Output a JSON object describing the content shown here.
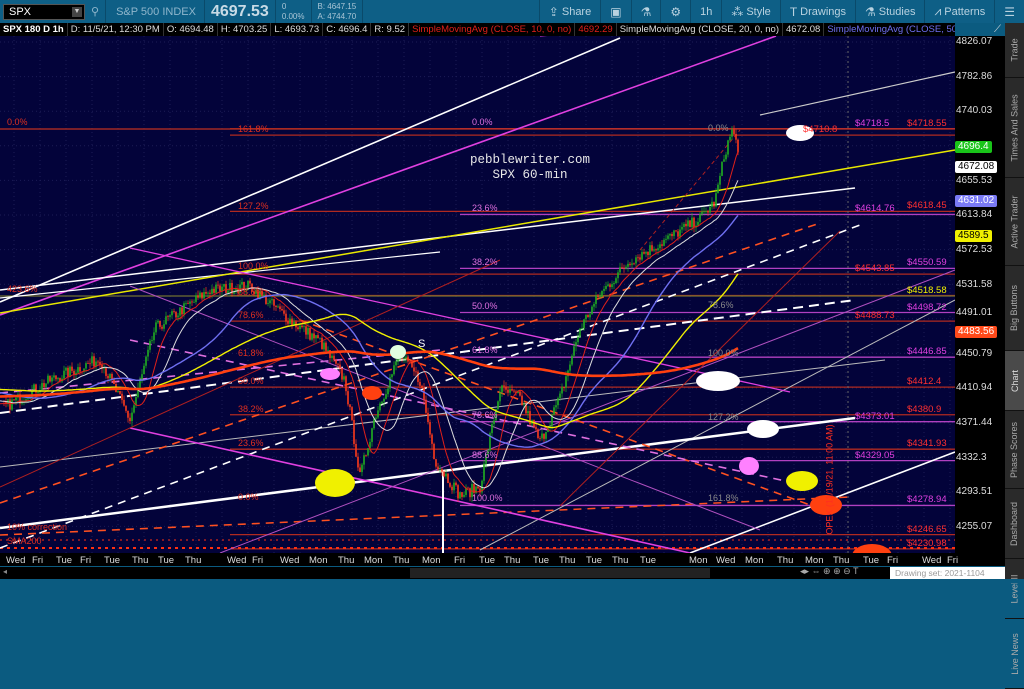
{
  "topbar": {
    "symbol": "SPX",
    "index_name": "S&P 500 INDEX",
    "last": "4697.53",
    "change": "0",
    "change_pct": "0.00%",
    "bid": "B: 4647.15",
    "ask": "A: 4744.70",
    "buttons": [
      {
        "label": "Share",
        "icon": "share-icon"
      },
      {
        "label": "",
        "icon": "flexible-grid-icon"
      },
      {
        "label": "",
        "icon": "flask-icon"
      },
      {
        "label": "",
        "icon": "gear-icon"
      },
      {
        "label": "1h",
        "icon": ""
      },
      {
        "label": "Style",
        "icon": "style-icon"
      },
      {
        "label": "Drawings",
        "icon": "text-t-icon"
      },
      {
        "label": "Studies",
        "icon": "flask-icon"
      },
      {
        "label": "Patterns",
        "icon": "patterns-icon"
      },
      {
        "label": "",
        "icon": "menu-icon"
      }
    ]
  },
  "legend": [
    {
      "text": "SPX 180 D 1h",
      "color": "#ffffff"
    },
    {
      "text": "D: 11/5/21, 12:30 PM",
      "color": "#dddddd"
    },
    {
      "text": "O: 4694.48",
      "color": "#dddddd"
    },
    {
      "text": "H: 4703.25",
      "color": "#dddddd"
    },
    {
      "text": "L: 4693.73",
      "color": "#dddddd"
    },
    {
      "text": "C: 4696.4",
      "color": "#dddddd"
    },
    {
      "text": "R: 9.52",
      "color": "#dddddd"
    },
    {
      "text": "SimpleMovingAvg (CLOSE, 10, 0, no)",
      "color": "#e0201a"
    },
    {
      "text": "4692.29",
      "color": "#e0201a"
    },
    {
      "text": "SimpleMovingAvg (CLOSE, 20, 0, no)",
      "color": "#dddddd"
    },
    {
      "text": "4672.08",
      "color": "#dddddd"
    },
    {
      "text": "SimpleMovingAvg (CLOSE, 50, 0, no)",
      "color": "#6f6ff0"
    },
    {
      "text": "...",
      "color": "#dddddd"
    }
  ],
  "axis": {
    "scale": "log",
    "ticks": [
      "4826.07",
      "4782.86",
      "4740.03",
      "4655.53",
      "4613.84",
      "4572.53",
      "4531.58",
      "4491.01",
      "4450.79",
      "4410.94",
      "4371.44",
      "4332.3",
      "4293.51",
      "4255.07"
    ]
  },
  "price_markers": [
    {
      "value": "4696.4",
      "bg": "#19c419",
      "fg": "#ffffff"
    },
    {
      "value": "4672.08",
      "bg": "#ffffff",
      "fg": "#000000"
    },
    {
      "value": "4631.02",
      "bg": "#7a7af5",
      "fg": "#ffffff"
    },
    {
      "value": "4589.5",
      "bg": "#f0f000",
      "fg": "#000000"
    },
    {
      "value": "4483.56",
      "bg": "#ff4a1a",
      "fg": "#ffffff"
    }
  ],
  "level_labels": [
    {
      "text": "$4718.5",
      "color": "#e040e0"
    },
    {
      "text": "$4718.55",
      "color": "#ff3030"
    },
    {
      "text": "$4710.8",
      "color": "#ff3030"
    },
    {
      "text": "$4618.45",
      "color": "#ff3030"
    },
    {
      "text": "$4614.76",
      "color": "#e040e0"
    },
    {
      "text": "$4550.59",
      "color": "#e040e0"
    },
    {
      "text": "$4543.85",
      "color": "#ff3030"
    },
    {
      "text": "$4518.58",
      "color": "#f0f000"
    },
    {
      "text": "$4498.72",
      "color": "#e040e0"
    },
    {
      "text": "$4488.73",
      "color": "#ff3030"
    },
    {
      "text": "$4446.85",
      "color": "#e040e0"
    },
    {
      "text": "$4412.4",
      "color": "#ff3030"
    },
    {
      "text": "$4380.9",
      "color": "#ff3030"
    },
    {
      "text": "$4373.01",
      "color": "#e040e0"
    },
    {
      "text": "$4341.93",
      "color": "#ff3030"
    },
    {
      "text": "$4329.05",
      "color": "#e040e0"
    },
    {
      "text": "$4278.94",
      "color": "#e040e0"
    },
    {
      "text": "$4246.65",
      "color": "#ff3030"
    },
    {
      "text": "$4230.98",
      "color": "#ff3030"
    }
  ],
  "fib_left": {
    "color": "#e03020",
    "labels": [
      "0.0%",
      "423.6%"
    ]
  },
  "fib_a": {
    "color": "#e03020",
    "labels": [
      "161.8%",
      "127.2%",
      "100.0%",
      "88.6%",
      "78.6%",
      "61.8%",
      "50.0%",
      "38.2%",
      "23.6%",
      "0.0%"
    ]
  },
  "fib_b": {
    "color": "#e070e0",
    "labels": [
      "0.0%",
      "23.6%",
      "38.2%",
      "50.0%",
      "61.8%",
      "78.6%",
      "88.6%",
      "100.0%"
    ]
  },
  "fib_c": {
    "color": "#8a8a8a",
    "labels": [
      "0.0%",
      "78.6%",
      "100.0%",
      "127.2%",
      "161.8%"
    ]
  },
  "notes": {
    "correction": "10% correction",
    "sma200": "SMA200",
    "opex": "OPEX (11/19/21, 11:00 AM)",
    "s_marker": "S"
  },
  "watermark": {
    "line1": "pebblewriter.com",
    "line2": "SPX 60-min"
  },
  "x_labels": [
    "Wed",
    "Fri",
    "Tue",
    "Fri",
    "Tue",
    "Thu",
    "Tue",
    "Thu",
    "Wed",
    "Fri",
    "Wed",
    "Mon",
    "Thu",
    "Mon",
    "Thu",
    "Mon",
    "Fri",
    "Tue",
    "Thu",
    "Tue",
    "Thu",
    "Tue",
    "Thu",
    "Tue",
    "Mon",
    "Wed",
    "Mon",
    "Thu",
    "Mon",
    "Thu",
    "Tue",
    "Fri",
    "Wed",
    "Fri"
  ],
  "sidebar": [
    {
      "label": "Trade"
    },
    {
      "label": "Times And Sales"
    },
    {
      "label": "Active Trader"
    },
    {
      "label": "Big Buttons"
    },
    {
      "label": "Chart",
      "selected": true
    },
    {
      "label": "Phase Scores"
    },
    {
      "label": "Dashboard"
    },
    {
      "label": "Level II"
    },
    {
      "label": "Live News"
    }
  ],
  "drawing_set": "Drawing set: 2021-1104",
  "colors": {
    "chart_bg": "#03033a",
    "up": "#20b020",
    "down": "#ff3a1a",
    "sma10": "#e0201a",
    "sma20": "#dddddd",
    "sma50": "#6f6ff0",
    "sma100": "#f0f000",
    "sma200": "#ff4010"
  }
}
